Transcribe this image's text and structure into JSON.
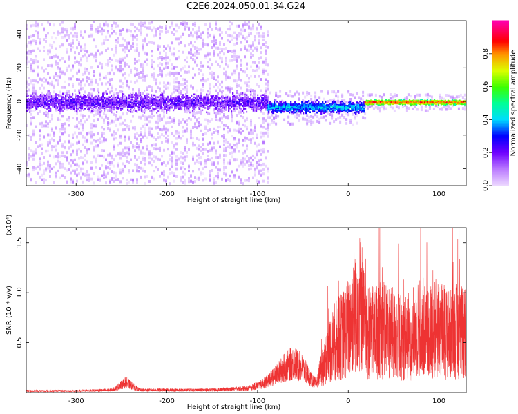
{
  "title": "C2E6.2024.050.01.34.G24",
  "chart_data": [
    {
      "type": "heatmap",
      "title": "",
      "xlabel": "Height of straight line (km)",
      "ylabel": "Frequency (Hz)",
      "xlim": [
        -355,
        130
      ],
      "ylim": [
        -50,
        48
      ],
      "xticks": [
        -300,
        -200,
        -100,
        0,
        100
      ],
      "yticks": [
        -40,
        -20,
        0,
        20,
        40
      ],
      "grid": false,
      "colorbar": {
        "label": "Normalized spectral amplitude",
        "range": [
          0.0,
          1.0
        ],
        "ticks": [
          0.0,
          0.2,
          0.4,
          0.6,
          0.8
        ],
        "tick_labels": [
          "0.0",
          "0.2",
          "0.4",
          "0.6",
          "0.8"
        ]
      },
      "regions": [
        {
          "x_range": [
            -355,
            -90
          ],
          "center_freq": 0,
          "halfwidth": 8,
          "amplitude": 0.2,
          "scatter_extent": 48
        },
        {
          "x_range": [
            -90,
            18
          ],
          "center_freq": -3,
          "halfwidth": 5,
          "amplitude": 0.4,
          "scatter_extent": 10
        },
        {
          "x_range": [
            18,
            130
          ],
          "center_freq": 0,
          "halfwidth": 2,
          "amplitude": 0.88,
          "scatter_extent": 5
        }
      ]
    },
    {
      "type": "line",
      "title": "",
      "xlabel": "Height of straight line (km)",
      "ylabel": "SNR (10 * v/v)",
      "y_multiplier": "(x10⁴)",
      "xlim": [
        -355,
        130
      ],
      "ylim": [
        0,
        1.65
      ],
      "xticks": [
        -300,
        -200,
        -100,
        0,
        100
      ],
      "yticks": [
        0.5,
        1.0,
        1.5
      ],
      "ytick_labels": [
        "0.5",
        "1.0",
        "1.5"
      ],
      "grid": false,
      "color": "#ee3333",
      "series": [
        {
          "name": "",
          "x": [
            -355,
            -300,
            -260,
            -245,
            -230,
            -200,
            -150,
            -110,
            -95,
            -80,
            -70,
            -60,
            -50,
            -40,
            -35,
            -30,
            -25,
            -20,
            -15,
            -10,
            -5,
            0,
            5,
            10,
            15,
            18,
            20,
            30,
            40,
            50,
            60,
            70,
            80,
            90,
            100,
            110,
            120,
            130
          ],
          "y": [
            0.02,
            0.02,
            0.03,
            0.12,
            0.03,
            0.03,
            0.03,
            0.05,
            0.1,
            0.2,
            0.3,
            0.35,
            0.28,
            0.15,
            0.1,
            0.3,
            0.45,
            0.6,
            0.7,
            0.75,
            0.8,
            0.9,
            1.1,
            1.3,
            1.2,
            0.9,
            0.8,
            0.85,
            0.9,
            0.8,
            0.75,
            0.8,
            0.9,
            0.85,
            0.9,
            0.8,
            0.85,
            0.8
          ]
        }
      ]
    }
  ]
}
